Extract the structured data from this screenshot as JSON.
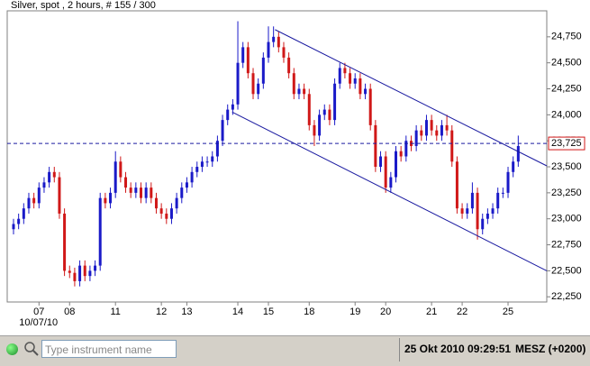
{
  "chart_data": {
    "type": "candlestick",
    "title": "Silver, spot , 2 hours, # 155 / 300",
    "date_label": "10/07/10",
    "categories": [
      null,
      null,
      null,
      null,
      null,
      "07",
      null,
      null,
      null,
      null,
      null,
      "08",
      null,
      null,
      null,
      null,
      null,
      null,
      null,
      null,
      "11",
      null,
      null,
      null,
      null,
      null,
      null,
      null,
      null,
      "12",
      null,
      null,
      null,
      null,
      "13",
      null,
      null,
      null,
      null,
      null,
      null,
      null,
      null,
      null,
      "14",
      null,
      null,
      null,
      null,
      null,
      "15",
      null,
      null,
      null,
      null,
      null,
      null,
      null,
      "18",
      null,
      null,
      null,
      null,
      null,
      null,
      null,
      null,
      "19",
      null,
      null,
      null,
      null,
      null,
      "20",
      null,
      null,
      null,
      null,
      null,
      null,
      null,
      null,
      "21",
      null,
      null,
      null,
      null,
      null,
      "22",
      null,
      null,
      null,
      null,
      null,
      null,
      null,
      null,
      "25",
      null,
      null
    ],
    "open": [
      22900,
      22950,
      23000,
      23100,
      23200,
      23150,
      23300,
      23350,
      23450,
      23400,
      23050,
      22500,
      22480,
      22400,
      22550,
      22450,
      22500,
      22550,
      23200,
      23150,
      23250,
      23550,
      23400,
      23300,
      23250,
      23300,
      23200,
      23300,
      23200,
      23100,
      23050,
      23000,
      23100,
      23200,
      23300,
      23350,
      23450,
      23500,
      23550,
      23550,
      23600,
      23750,
      23950,
      24050,
      24100,
      24500,
      24650,
      24400,
      24200,
      24300,
      24550,
      24700,
      24750,
      24650,
      24550,
      24400,
      24200,
      24250,
      24200,
      23900,
      23800,
      24000,
      24050,
      23950,
      24300,
      24450,
      24400,
      24300,
      24350,
      24200,
      24250,
      23900,
      23500,
      23600,
      23300,
      23400,
      23650,
      23600,
      23750,
      23700,
      23850,
      23800,
      23950,
      23850,
      23800,
      23900,
      23850,
      23550,
      23100,
      23050,
      23100,
      23250,
      22900,
      23000,
      23050,
      23100,
      23250,
      23250,
      23450,
      23550
    ],
    "high": [
      23000,
      23050,
      23150,
      23250,
      23250,
      23350,
      23400,
      23500,
      23500,
      23450,
      23100,
      22550,
      22530,
      22600,
      22600,
      22550,
      22600,
      23250,
      23250,
      23300,
      23650,
      23600,
      23450,
      23350,
      23350,
      23350,
      23350,
      23350,
      23250,
      23150,
      23100,
      23150,
      23250,
      23350,
      23400,
      23500,
      23550,
      23600,
      23600,
      23650,
      23800,
      24000,
      24100,
      24150,
      24900,
      24700,
      24700,
      24450,
      24350,
      24600,
      24850,
      24850,
      24800,
      24700,
      24600,
      24450,
      24300,
      24300,
      24250,
      23950,
      24050,
      24100,
      24100,
      24350,
      24500,
      24500,
      24450,
      24400,
      24400,
      24300,
      24300,
      23950,
      23650,
      23650,
      23450,
      23700,
      23700,
      23800,
      23800,
      23900,
      23900,
      24000,
      24000,
      23900,
      23950,
      24000,
      23900,
      23600,
      23150,
      23150,
      23350,
      23300,
      23050,
      23100,
      23150,
      23300,
      23300,
      23500,
      23600,
      23800
    ],
    "low": [
      22850,
      22900,
      22950,
      23050,
      23100,
      23100,
      23250,
      23300,
      23350,
      23000,
      22450,
      22430,
      22350,
      22350,
      22400,
      22400,
      22450,
      22500,
      23100,
      23100,
      23200,
      23350,
      23250,
      23200,
      23200,
      23150,
      23150,
      23150,
      23050,
      23000,
      22950,
      22950,
      23050,
      23150,
      23250,
      23300,
      23400,
      23450,
      23500,
      23500,
      23550,
      23700,
      23900,
      24000,
      24050,
      24450,
      24350,
      24150,
      24150,
      24250,
      24500,
      24650,
      24600,
      24500,
      24350,
      24150,
      24150,
      24150,
      23850,
      23700,
      23750,
      23950,
      23900,
      23900,
      24250,
      24350,
      24250,
      24250,
      24150,
      24150,
      23850,
      23450,
      23450,
      23250,
      23250,
      23350,
      23550,
      23550,
      23650,
      23650,
      23750,
      23750,
      23800,
      23750,
      23750,
      23800,
      23500,
      23050,
      23000,
      23000,
      23050,
      22800,
      22850,
      22950,
      23000,
      23050,
      23200,
      23200,
      23400,
      23500
    ],
    "close": [
      22950,
      23000,
      23100,
      23200,
      23150,
      23300,
      23350,
      23450,
      23400,
      23050,
      22500,
      22480,
      22400,
      22550,
      22450,
      22500,
      22550,
      23200,
      23150,
      23250,
      23550,
      23400,
      23300,
      23250,
      23300,
      23200,
      23300,
      23200,
      23100,
      23050,
      23000,
      23100,
      23200,
      23300,
      23350,
      23450,
      23500,
      23550,
      23550,
      23600,
      23750,
      23950,
      24050,
      24100,
      24500,
      24650,
      24400,
      24200,
      24300,
      24550,
      24700,
      24750,
      24650,
      24550,
      24400,
      24200,
      24250,
      24200,
      23900,
      23800,
      24000,
      24050,
      23950,
      24300,
      24450,
      24400,
      24300,
      24350,
      24200,
      24250,
      23900,
      23500,
      23600,
      23300,
      23400,
      23650,
      23600,
      23750,
      23700,
      23850,
      23800,
      23950,
      23850,
      23800,
      23900,
      23850,
      23550,
      23100,
      23050,
      23100,
      23250,
      22900,
      23000,
      23050,
      23100,
      23250,
      23250,
      23450,
      23550,
      23700
    ],
    "up_color": "#1a1ac8",
    "down_color": "#d01818",
    "ylim": [
      22200,
      25000
    ],
    "yticks": [
      {
        "value": 22250,
        "label": "22,250"
      },
      {
        "value": 22500,
        "label": "22,500"
      },
      {
        "value": 22750,
        "label": "22,750"
      },
      {
        "value": 23000,
        "label": "23,000"
      },
      {
        "value": 23250,
        "label": "23,250"
      },
      {
        "value": 23500,
        "label": "23,500"
      },
      {
        "value": 23750,
        "label": "23,750"
      },
      {
        "value": 24000,
        "label": "24,000"
      },
      {
        "value": 24250,
        "label": "24,250"
      },
      {
        "value": 24500,
        "label": "24,500"
      },
      {
        "value": 24750,
        "label": "24,750"
      }
    ],
    "grid": false,
    "current_price": {
      "value": 23725,
      "label": "23,725"
    },
    "trendlines": [
      {
        "x": [
          51.3,
          104.6
        ],
        "y": [
          24819,
          23509
        ]
      },
      {
        "x": [
          42.9,
          104.6
        ],
        "y": [
          24026,
          22500
        ]
      }
    ],
    "trendline_color": "#1a1aa0"
  },
  "status_bar": {
    "search_placeholder": "Type instrument name",
    "datetime": "25 Okt 2010 09:29:51",
    "timezone": "MESZ (+0200)"
  }
}
